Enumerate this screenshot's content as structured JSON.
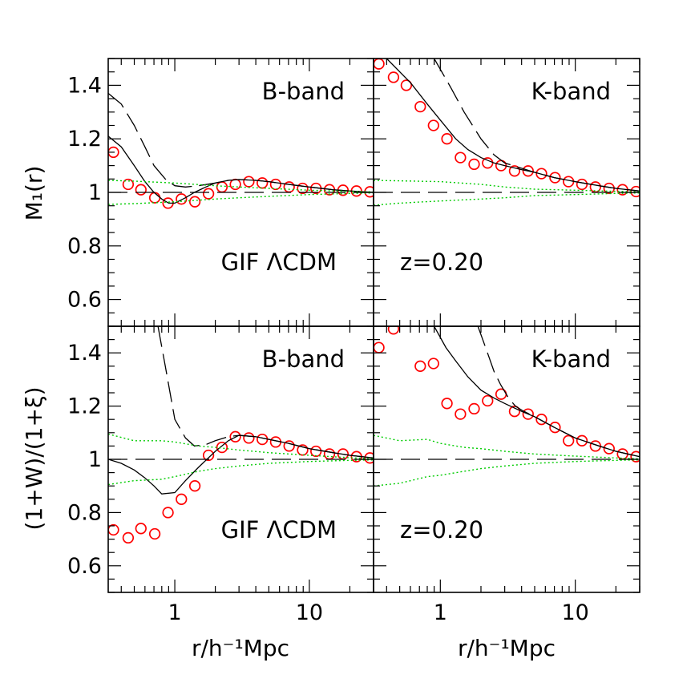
{
  "chart_data": [
    {
      "type": "scatter",
      "panel": "top-left",
      "label_band": "B-band",
      "label_corner": "GIF ΛCDM",
      "ylabel": "M₁(r)",
      "xlabel": "",
      "xscale": "log",
      "xlim": [
        0.32,
        30
      ],
      "ylim": [
        0.5,
        1.5
      ],
      "series": [
        {
          "marker": "circle",
          "color": "#ff0000",
          "x": [
            0.35,
            0.45,
            0.56,
            0.71,
            0.89,
            1.12,
            1.41,
            1.78,
            2.24,
            2.82,
            3.55,
            4.47,
            5.62,
            7.08,
            8.91,
            11.2,
            14.1,
            17.8,
            22.4,
            28.2
          ],
          "y": [
            1.15,
            1.03,
            1.01,
            0.98,
            0.96,
            0.975,
            0.965,
            0.995,
            1.02,
            1.03,
            1.04,
            1.035,
            1.03,
            1.02,
            1.015,
            1.015,
            1.01,
            1.008,
            1.005,
            1.002
          ]
        },
        {
          "style": "solid",
          "color": "#000000",
          "x": [
            0.32,
            0.4,
            0.5,
            0.6,
            0.7,
            0.8,
            0.9,
            1.0,
            1.2,
            1.4,
            1.7,
            2.0,
            2.5,
            3.0,
            4.0,
            5.0,
            7.0,
            10,
            15,
            20,
            30
          ],
          "y": [
            1.21,
            1.17,
            1.1,
            1.04,
            1.0,
            0.975,
            0.96,
            0.96,
            0.98,
            1.0,
            1.02,
            1.035,
            1.045,
            1.048,
            1.045,
            1.04,
            1.03,
            1.02,
            1.01,
            1.005,
            1.0
          ]
        },
        {
          "style": "long-dash",
          "color": "#000000",
          "x": [
            0.32,
            0.4,
            0.5,
            0.6,
            0.7,
            0.85,
            1.0,
            1.2,
            1.5,
            2.0,
            2.5,
            3.0,
            4.0,
            5.0,
            7.0,
            10,
            15,
            20,
            30
          ],
          "y": [
            1.37,
            1.33,
            1.25,
            1.17,
            1.1,
            1.05,
            1.025,
            1.02,
            1.025,
            1.035,
            1.045,
            1.048,
            1.045,
            1.04,
            1.03,
            1.02,
            1.01,
            1.005,
            1.0
          ]
        },
        {
          "style": "dotted",
          "color": "#00cc00",
          "x": [
            0.32,
            0.5,
            1,
            2,
            3,
            5,
            10,
            20,
            30
          ],
          "y": [
            1.045,
            1.042,
            1.035,
            1.025,
            1.02,
            1.015,
            1.008,
            1.004,
            1.002
          ]
        },
        {
          "style": "dotted",
          "color": "#00cc00",
          "x": [
            0.32,
            0.5,
            1,
            2,
            3,
            5,
            10,
            20,
            30
          ],
          "y": [
            0.955,
            0.958,
            0.965,
            0.975,
            0.98,
            0.985,
            0.992,
            0.996,
            0.998
          ]
        },
        {
          "style": "dashed-reference",
          "color": "#000000",
          "x": [
            0.32,
            30
          ],
          "y": [
            1.0,
            1.0
          ]
        }
      ]
    },
    {
      "type": "scatter",
      "panel": "top-right",
      "label_band": "K-band",
      "label_corner": "z=0.20",
      "ylabel": "",
      "xlabel": "",
      "xscale": "log",
      "xlim": [
        0.32,
        30
      ],
      "ylim": [
        0.5,
        1.5
      ],
      "series": [
        {
          "marker": "circle",
          "color": "#ff0000",
          "x": [
            0.35,
            0.45,
            0.56,
            0.71,
            0.89,
            1.12,
            1.41,
            1.78,
            2.24,
            2.82,
            3.55,
            4.47,
            5.62,
            7.08,
            8.91,
            11.2,
            14.1,
            17.8,
            22.4,
            28.2
          ],
          "y": [
            1.48,
            1.43,
            1.4,
            1.32,
            1.25,
            1.2,
            1.13,
            1.105,
            1.11,
            1.1,
            1.08,
            1.08,
            1.07,
            1.055,
            1.04,
            1.03,
            1.02,
            1.015,
            1.01,
            1.003
          ]
        },
        {
          "style": "solid",
          "color": "#000000",
          "x": [
            0.4,
            0.6,
            0.8,
            1.0,
            1.3,
            1.6,
            2.0,
            2.5,
            3.0,
            4.0,
            5.0,
            7.0,
            10,
            15,
            20,
            30
          ],
          "y": [
            1.5,
            1.41,
            1.33,
            1.27,
            1.2,
            1.16,
            1.13,
            1.11,
            1.1,
            1.085,
            1.075,
            1.055,
            1.04,
            1.025,
            1.015,
            1.005
          ]
        },
        {
          "style": "long-dash",
          "color": "#000000",
          "x": [
            0.9,
            1.2,
            1.5,
            2.0,
            2.5,
            3.0,
            4.0,
            5.0,
            7.0,
            10,
            15,
            20,
            30
          ],
          "y": [
            1.5,
            1.39,
            1.3,
            1.2,
            1.14,
            1.11,
            1.09,
            1.075,
            1.055,
            1.04,
            1.025,
            1.015,
            1.005
          ]
        },
        {
          "style": "dotted",
          "color": "#00cc00",
          "x": [
            0.32,
            0.5,
            1,
            2,
            3,
            5,
            10,
            20,
            30
          ],
          "y": [
            1.045,
            1.043,
            1.04,
            1.03,
            1.02,
            1.012,
            1.008,
            1.004,
            1.002
          ]
        },
        {
          "style": "dotted",
          "color": "#00cc00",
          "x": [
            0.32,
            0.5,
            1,
            2,
            3,
            5,
            10,
            20,
            30
          ],
          "y": [
            0.952,
            0.96,
            0.968,
            0.975,
            0.98,
            0.988,
            0.992,
            0.996,
            0.998
          ]
        },
        {
          "style": "dashed-reference",
          "color": "#000000",
          "x": [
            0.32,
            30
          ],
          "y": [
            1.0,
            1.0
          ]
        }
      ]
    },
    {
      "type": "scatter",
      "panel": "bottom-left",
      "label_band": "B-band",
      "label_corner": "GIF ΛCDM",
      "ylabel": "(1+W)/(1+ξ)",
      "xlabel": "r/h⁻¹Mpc",
      "xscale": "log",
      "xlim": [
        0.32,
        30
      ],
      "ylim": [
        0.5,
        1.5
      ],
      "xticks": [
        "1",
        "10"
      ],
      "series": [
        {
          "marker": "circle",
          "color": "#ff0000",
          "x": [
            0.35,
            0.45,
            0.56,
            0.71,
            0.89,
            1.12,
            1.41,
            1.78,
            2.24,
            2.82,
            3.55,
            4.47,
            5.62,
            7.08,
            8.91,
            11.2,
            14.1,
            17.8,
            22.4,
            28.2
          ],
          "y": [
            0.735,
            0.705,
            0.74,
            0.72,
            0.8,
            0.85,
            0.9,
            1.015,
            1.045,
            1.085,
            1.08,
            1.075,
            1.065,
            1.05,
            1.035,
            1.03,
            1.02,
            1.02,
            1.01,
            1.005
          ]
        },
        {
          "style": "solid",
          "color": "#000000",
          "x": [
            0.32,
            0.4,
            0.5,
            0.6,
            0.7,
            0.8,
            1.0,
            1.2,
            1.5,
            2.0,
            2.5,
            3.0,
            4.0,
            5.0,
            7.0,
            10,
            15,
            20,
            30
          ],
          "y": [
            1.0,
            0.985,
            0.96,
            0.93,
            0.9,
            0.87,
            0.875,
            0.92,
            0.97,
            1.03,
            1.07,
            1.09,
            1.085,
            1.075,
            1.06,
            1.04,
            1.025,
            1.015,
            1.005
          ]
        },
        {
          "style": "long-dash",
          "color": "#000000",
          "x": [
            0.75,
            0.85,
            1.0,
            1.2,
            1.4,
            1.7,
            2.0,
            2.5,
            3.0,
            4.0,
            5.0,
            7.0,
            10,
            15,
            20,
            30
          ],
          "y": [
            1.5,
            1.35,
            1.15,
            1.08,
            1.05,
            1.055,
            1.07,
            1.085,
            1.09,
            1.085,
            1.075,
            1.06,
            1.04,
            1.025,
            1.015,
            1.005
          ]
        },
        {
          "style": "dotted",
          "color": "#00cc00",
          "x": [
            0.32,
            0.5,
            0.8,
            1.0,
            1.5,
            2,
            3,
            5,
            10,
            20,
            30
          ],
          "y": [
            1.095,
            1.07,
            1.07,
            1.065,
            1.05,
            1.045,
            1.035,
            1.025,
            1.015,
            1.006,
            1.002
          ]
        },
        {
          "style": "dotted",
          "color": "#00cc00",
          "x": [
            0.32,
            0.5,
            0.8,
            1.0,
            1.5,
            2,
            3,
            5,
            10,
            20,
            30
          ],
          "y": [
            0.905,
            0.92,
            0.925,
            0.935,
            0.955,
            0.965,
            0.975,
            0.985,
            0.992,
            0.996,
            0.998
          ]
        },
        {
          "style": "dashed-reference",
          "color": "#000000",
          "x": [
            0.32,
            30
          ],
          "y": [
            1.0,
            1.0
          ]
        }
      ]
    },
    {
      "type": "scatter",
      "panel": "bottom-right",
      "label_band": "K-band",
      "label_corner": "z=0.20",
      "ylabel": "",
      "xlabel": "r/h⁻¹Mpc",
      "xscale": "log",
      "xlim": [
        0.32,
        30
      ],
      "ylim": [
        0.5,
        1.5
      ],
      "xticks": [
        "1",
        "10"
      ],
      "series": [
        {
          "marker": "circle",
          "color": "#ff0000",
          "x": [
            0.35,
            0.45,
            0.71,
            0.89,
            1.12,
            1.41,
            1.78,
            2.24,
            2.82,
            3.55,
            4.47,
            5.62,
            7.08,
            8.91,
            11.2,
            14.1,
            17.8,
            22.4,
            28.2
          ],
          "y": [
            1.42,
            1.49,
            1.35,
            1.36,
            1.21,
            1.17,
            1.19,
            1.22,
            1.245,
            1.18,
            1.17,
            1.15,
            1.12,
            1.07,
            1.07,
            1.05,
            1.04,
            1.02,
            1.01
          ]
        },
        {
          "style": "solid",
          "color": "#000000",
          "x": [
            0.9,
            1.1,
            1.3,
            1.6,
            2.0,
            2.5,
            3.0,
            4.0,
            5.0,
            7.0,
            10,
            15,
            20,
            30
          ],
          "y": [
            1.5,
            1.42,
            1.37,
            1.31,
            1.26,
            1.23,
            1.21,
            1.18,
            1.16,
            1.12,
            1.08,
            1.05,
            1.03,
            1.01
          ]
        },
        {
          "style": "long-dash",
          "color": "#000000",
          "x": [
            1.9,
            2.2,
            2.5,
            2.8,
            3.2,
            3.6,
            4.0,
            5.0,
            7.0,
            10,
            15,
            20,
            30
          ],
          "y": [
            1.5,
            1.41,
            1.33,
            1.28,
            1.23,
            1.2,
            1.185,
            1.16,
            1.12,
            1.08,
            1.05,
            1.03,
            1.01
          ]
        },
        {
          "style": "dotted",
          "color": "#00cc00",
          "x": [
            0.32,
            0.5,
            0.8,
            1.0,
            1.5,
            2,
            3,
            5,
            10,
            20,
            30
          ],
          "y": [
            1.09,
            1.07,
            1.075,
            1.06,
            1.045,
            1.04,
            1.03,
            1.02,
            1.012,
            1.005,
            1.002
          ]
        },
        {
          "style": "dotted",
          "color": "#00cc00",
          "x": [
            0.32,
            0.5,
            0.8,
            1.0,
            1.5,
            2,
            3,
            5,
            10,
            20,
            30
          ],
          "y": [
            0.9,
            0.91,
            0.935,
            0.94,
            0.955,
            0.965,
            0.975,
            0.985,
            0.992,
            0.996,
            0.998
          ]
        },
        {
          "style": "dashed-reference",
          "color": "#000000",
          "x": [
            0.32,
            30
          ],
          "y": [
            1.0,
            1.0
          ]
        }
      ]
    }
  ],
  "yticks": [
    "0.6",
    "0.8",
    "1",
    "1.2",
    "1.4"
  ],
  "colors": {
    "points": "#ff0000",
    "model": "#000000",
    "errors": "#00cc00"
  }
}
